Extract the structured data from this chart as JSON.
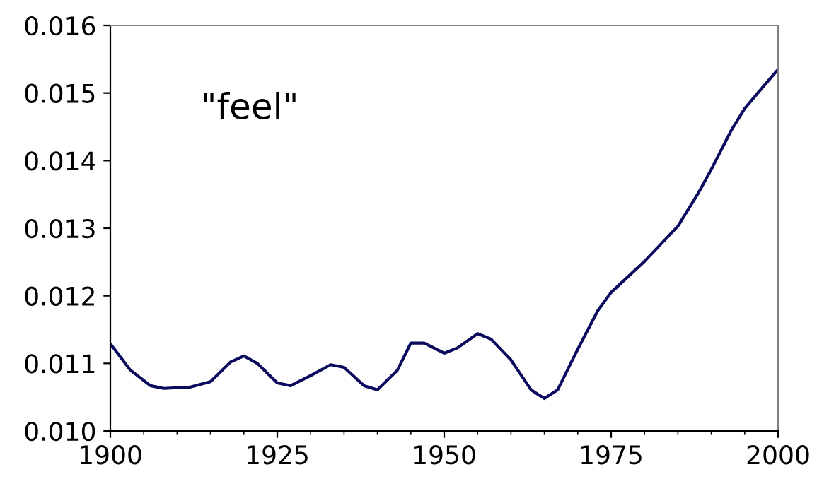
{
  "chart_data": {
    "type": "line",
    "annotations": [
      "\"feel\""
    ],
    "x": [
      1900,
      1903,
      1906,
      1908,
      1912,
      1915,
      1918,
      1920,
      1922,
      1925,
      1927,
      1930,
      1933,
      1935,
      1938,
      1940,
      1943,
      1945,
      1947,
      1950,
      1952,
      1955,
      1957,
      1960,
      1963,
      1965,
      1967,
      1970,
      1973,
      1975,
      1980,
      1985,
      1988,
      1990,
      1993,
      1995,
      1998,
      2000
    ],
    "series": [
      {
        "color": "#0a0a5e",
        "values": [
          0.01129,
          0.0109,
          0.01067,
          0.01063,
          0.01065,
          0.01073,
          0.01102,
          0.01111,
          0.011,
          0.01071,
          0.01067,
          0.01082,
          0.01098,
          0.01094,
          0.01067,
          0.01061,
          0.0109,
          0.0113,
          0.0113,
          0.01115,
          0.01123,
          0.01144,
          0.01136,
          0.01105,
          0.01061,
          0.01048,
          0.01061,
          0.01121,
          0.01178,
          0.01205,
          0.01251,
          0.01303,
          0.01351,
          0.01387,
          0.01445,
          0.01477,
          0.01512,
          0.01535
        ]
      }
    ],
    "xlim": [
      1900,
      2000
    ],
    "xticks": [
      1900,
      1925,
      1950,
      1975,
      2000
    ],
    "ylim": [
      0.01,
      0.016
    ],
    "yticks": [
      {
        "value": 0.01,
        "label": "0.010"
      },
      0.011,
      0.012,
      0.013,
      0.014,
      0.015,
      0.016
    ],
    "grid": false,
    "legend": false
  }
}
